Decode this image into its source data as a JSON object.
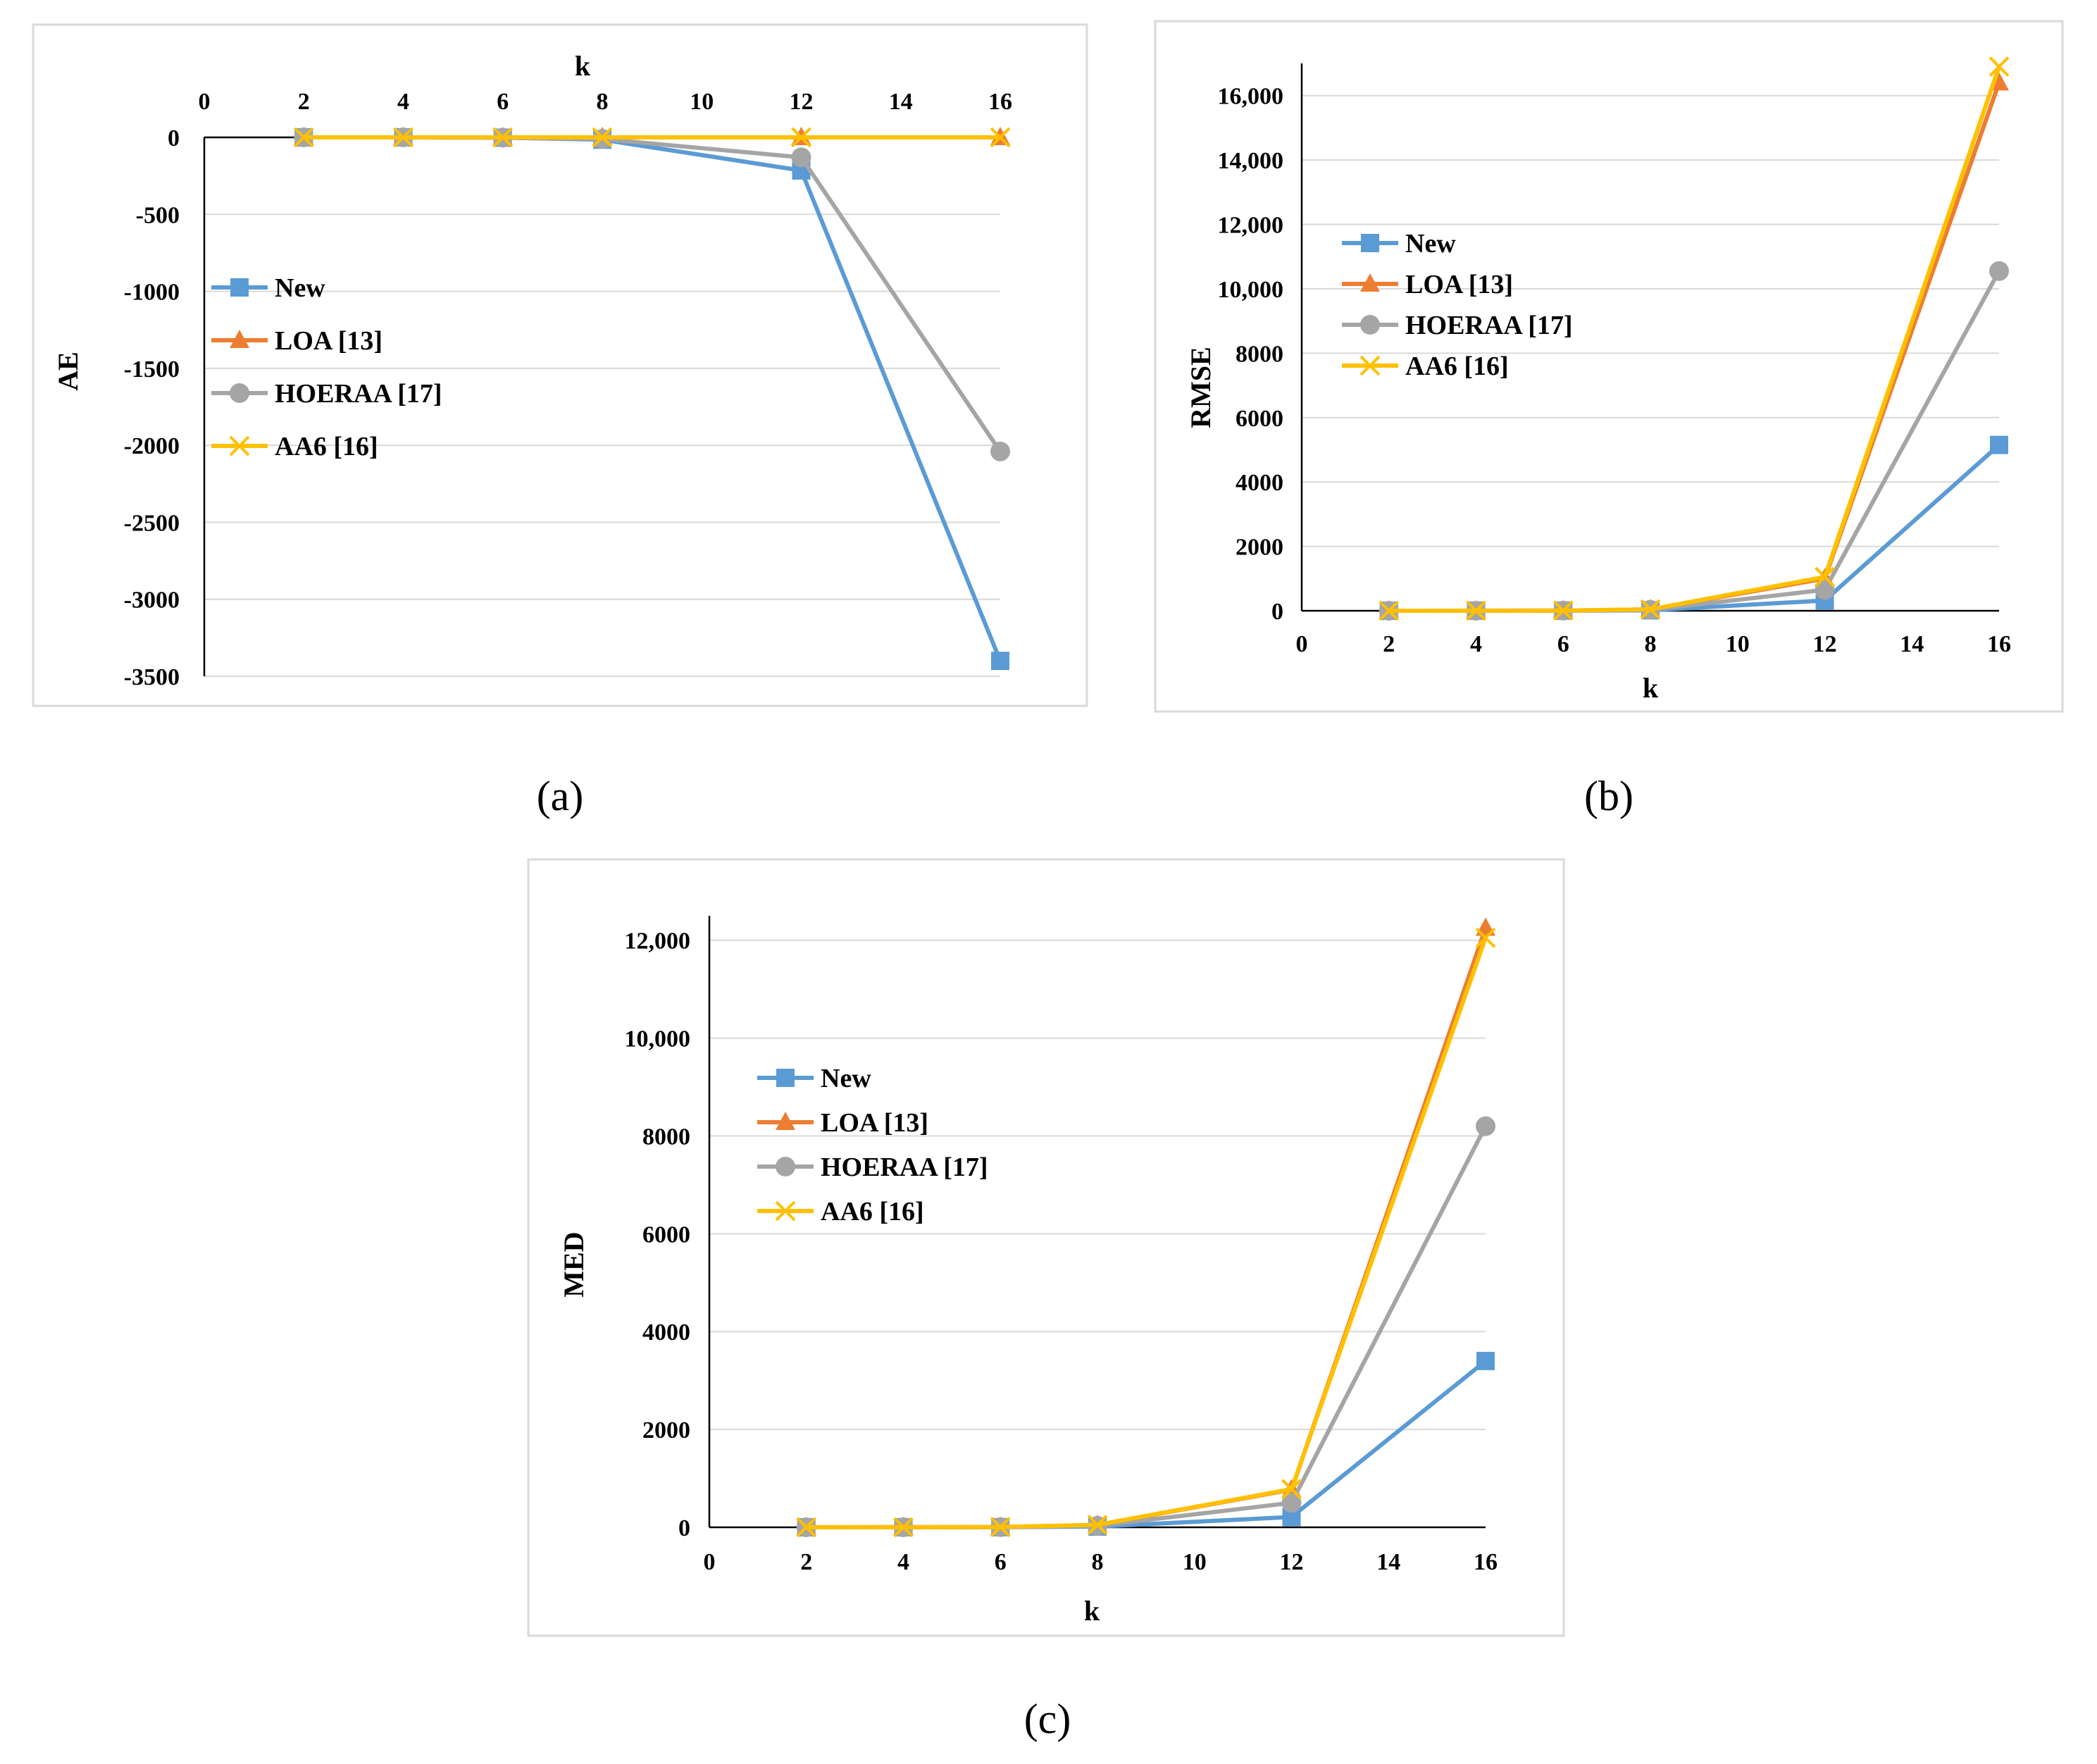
{
  "colors": {
    "New": "#5b9bd5",
    "LOA [13]": "#ed7d31",
    "HOERAA [17]": "#a5a5a5",
    "AA6 [16]": "#ffc000"
  },
  "chart_data": [
    {
      "id": "a",
      "type": "line",
      "caption": "(a)",
      "title": "",
      "xlabel": "k",
      "ylabel": "AE",
      "xlim": [
        0,
        16
      ],
      "ylim": [
        -3500,
        0
      ],
      "x_ticks": [
        0,
        2,
        4,
        6,
        8,
        10,
        12,
        14,
        16
      ],
      "y_ticks": [
        0,
        -500,
        -1000,
        -1500,
        -2000,
        -2500,
        -3000,
        -3500
      ],
      "x_tick_labels": [
        "0",
        "2",
        "4",
        "6",
        "8",
        "10",
        "12",
        "14",
        "16"
      ],
      "y_tick_labels": [
        "0",
        "-500",
        "-1000",
        "-1500",
        "-2000",
        "-2500",
        "-3000",
        "-3500"
      ],
      "x_axis_position": "top",
      "legend": [
        "New",
        "LOA [13]",
        "HOERAA [17]",
        "AA6 [16]"
      ],
      "x": [
        2,
        4,
        6,
        8,
        12,
        16
      ],
      "series": [
        {
          "name": "New",
          "marker": "square",
          "values": [
            0,
            0,
            -2,
            -15,
            -215,
            -3400
          ]
        },
        {
          "name": "LOA [13]",
          "marker": "triangle",
          "values": [
            0,
            0,
            0,
            0,
            0,
            0
          ]
        },
        {
          "name": "HOERAA [17]",
          "marker": "circle",
          "values": [
            0,
            0,
            -2,
            -10,
            -130,
            -2040
          ]
        },
        {
          "name": "AA6 [16]",
          "marker": "x",
          "values": [
            0,
            0,
            0,
            0,
            0,
            0
          ]
        }
      ]
    },
    {
      "id": "b",
      "type": "line",
      "caption": "(b)",
      "title": "",
      "xlabel": "k",
      "ylabel": "RMSE",
      "xlim": [
        0,
        16
      ],
      "ylim": [
        0,
        17000
      ],
      "x_ticks": [
        0,
        2,
        4,
        6,
        8,
        10,
        12,
        14,
        16
      ],
      "y_ticks": [
        0,
        2000,
        4000,
        6000,
        8000,
        10000,
        12000,
        14000,
        16000
      ],
      "x_tick_labels": [
        "0",
        "2",
        "4",
        "6",
        "8",
        "10",
        "12",
        "14",
        "16"
      ],
      "y_tick_labels": [
        "0",
        "2000",
        "4000",
        "6000",
        "8000",
        "10,000",
        "12,000",
        "14,000",
        "16,000"
      ],
      "x_axis_position": "bottom",
      "legend": [
        "New",
        "LOA [13]",
        "HOERAA [17]",
        "AA6 [16]"
      ],
      "x": [
        2,
        4,
        6,
        8,
        12,
        16
      ],
      "series": [
        {
          "name": "New",
          "marker": "square",
          "values": [
            0,
            1,
            3,
            15,
            320,
            5150
          ]
        },
        {
          "name": "LOA [13]",
          "marker": "triangle",
          "values": [
            0,
            2,
            6,
            40,
            1000,
            16400
          ]
        },
        {
          "name": "HOERAA [17]",
          "marker": "circle",
          "values": [
            0,
            1,
            5,
            30,
            650,
            10550
          ]
        },
        {
          "name": "AA6 [16]",
          "marker": "x",
          "values": [
            0,
            2,
            6,
            45,
            1050,
            16900
          ]
        }
      ]
    },
    {
      "id": "c",
      "type": "line",
      "caption": "(c)",
      "title": "",
      "xlabel": "k",
      "ylabel": "MED",
      "xlim": [
        0,
        16
      ],
      "ylim": [
        0,
        12500
      ],
      "x_ticks": [
        0,
        2,
        4,
        6,
        8,
        10,
        12,
        14,
        16
      ],
      "y_ticks": [
        0,
        2000,
        4000,
        6000,
        8000,
        10000,
        12000
      ],
      "x_tick_labels": [
        "0",
        "2",
        "4",
        "6",
        "8",
        "10",
        "12",
        "14",
        "16"
      ],
      "y_tick_labels": [
        "0",
        "2000",
        "4000",
        "6000",
        "8000",
        "10,000",
        "12,000"
      ],
      "x_axis_position": "bottom",
      "legend": [
        "New",
        "LOA [13]",
        "HOERAA [17]",
        "AA6 [16]"
      ],
      "x": [
        2,
        4,
        6,
        8,
        12,
        16
      ],
      "series": [
        {
          "name": "New",
          "marker": "square",
          "values": [
            0,
            1,
            2,
            15,
            210,
            3400
          ]
        },
        {
          "name": "LOA [13]",
          "marker": "triangle",
          "values": [
            0,
            2,
            5,
            45,
            770,
            12250
          ]
        },
        {
          "name": "HOERAA [17]",
          "marker": "circle",
          "values": [
            0,
            1,
            4,
            30,
            500,
            8200
          ]
        },
        {
          "name": "AA6 [16]",
          "marker": "x",
          "values": [
            0,
            2,
            5,
            50,
            780,
            12050
          ]
        }
      ]
    }
  ]
}
